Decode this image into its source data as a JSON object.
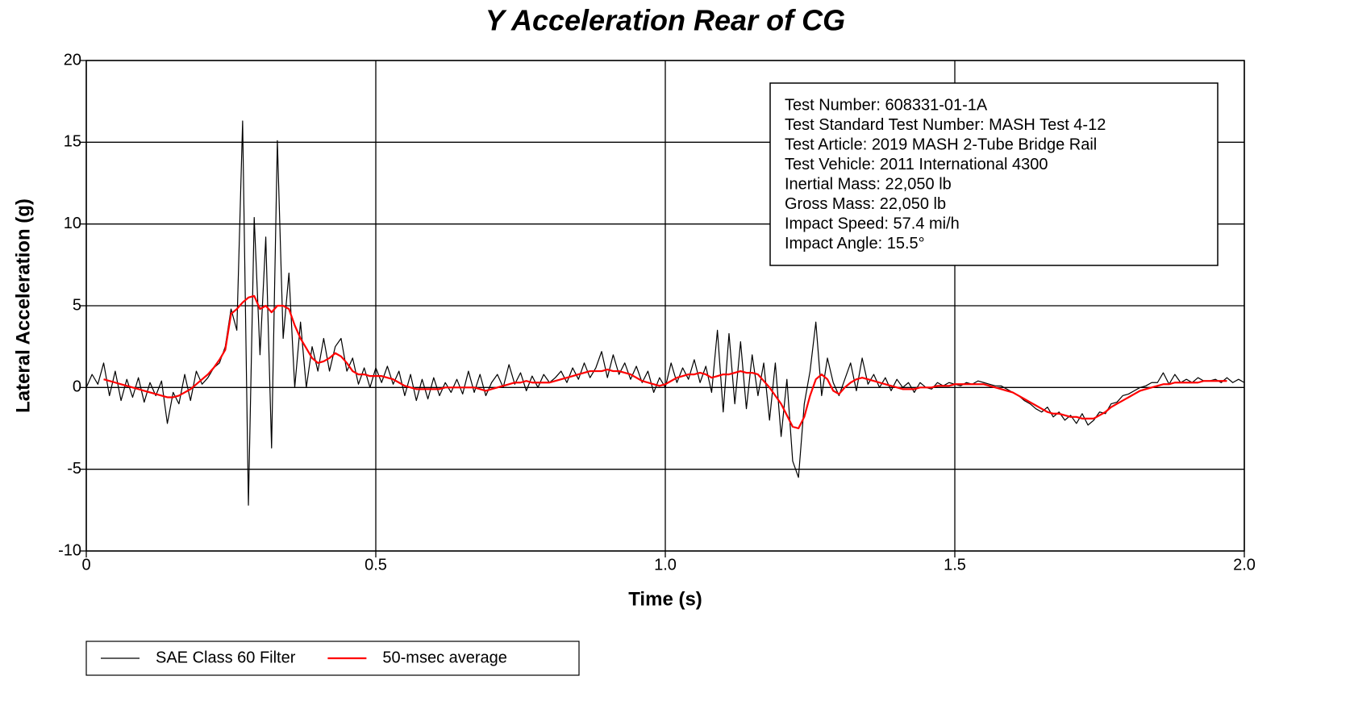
{
  "chart_data": {
    "type": "line",
    "title": "Y Acceleration Rear of CG",
    "xlabel": "Time (s)",
    "ylabel": "Lateral Acceleration (g)",
    "annotations": [
      "Test Number:  608331-01-1A",
      "Test Standard Test Number:  MASH Test 4-12",
      "Test Article:  2019 MASH 2-Tube Bridge Rail",
      "Test Vehicle:  2011 International 4300",
      "Inertial Mass:  22,050 lb",
      "Gross Mass:  22,050 lb",
      "Impact Speed:  57.4 mi/h",
      "Impact Angle:  15.5°"
    ],
    "xlim": [
      0,
      2
    ],
    "ylim": [
      -10,
      20
    ],
    "xticks": [
      0,
      0.5,
      {
        "value": 1,
        "label": "1.0"
      },
      1.5,
      {
        "value": 2,
        "label": "2.0"
      }
    ],
    "yticks": [
      -10,
      -5,
      0,
      5,
      10,
      15,
      20
    ],
    "grid": true,
    "legend": "bottom-left",
    "x": [
      0,
      0.01,
      0.02,
      0.03,
      0.04,
      0.05,
      0.06,
      0.07,
      0.08,
      0.09,
      0.1,
      0.11,
      0.12,
      0.13,
      0.14,
      0.15,
      0.16,
      0.17,
      0.18,
      0.19,
      0.2,
      0.21,
      0.22,
      0.23,
      0.24,
      0.25,
      0.26,
      0.27,
      0.28,
      0.29,
      0.3,
      0.31,
      0.32,
      0.33,
      0.34,
      0.35,
      0.36,
      0.37,
      0.38,
      0.39,
      0.4,
      0.41,
      0.42,
      0.43,
      0.44,
      0.45,
      0.46,
      0.47,
      0.48,
      0.49,
      0.5,
      0.51,
      0.52,
      0.53,
      0.54,
      0.55,
      0.56,
      0.57,
      0.58,
      0.59,
      0.6,
      0.61,
      0.62,
      0.63,
      0.64,
      0.65,
      0.66,
      0.67,
      0.68,
      0.69,
      0.7,
      0.71,
      0.72,
      0.73,
      0.74,
      0.75,
      0.76,
      0.77,
      0.78,
      0.79,
      0.8,
      0.81,
      0.82,
      0.83,
      0.84,
      0.85,
      0.86,
      0.87,
      0.88,
      0.89,
      0.9,
      0.91,
      0.92,
      0.93,
      0.94,
      0.95,
      0.96,
      0.97,
      0.98,
      0.99,
      1,
      1.01,
      1.02,
      1.03,
      1.04,
      1.05,
      1.06,
      1.07,
      1.08,
      1.09,
      1.1,
      1.11,
      1.12,
      1.13,
      1.14,
      1.15,
      1.16,
      1.17,
      1.18,
      1.19,
      1.2,
      1.21,
      1.22,
      1.23,
      1.24,
      1.25,
      1.26,
      1.27,
      1.28,
      1.29,
      1.3,
      1.31,
      1.32,
      1.33,
      1.34,
      1.35,
      1.36,
      1.37,
      1.38,
      1.39,
      1.4,
      1.41,
      1.42,
      1.43,
      1.44,
      1.45,
      1.46,
      1.47,
      1.48,
      1.49,
      1.5,
      1.51,
      1.52,
      1.53,
      1.54,
      1.55,
      1.56,
      1.57,
      1.58,
      1.59,
      1.6,
      1.61,
      1.62,
      1.63,
      1.64,
      1.65,
      1.66,
      1.67,
      1.68,
      1.69,
      1.7,
      1.71,
      1.72,
      1.73,
      1.74,
      1.75,
      1.76,
      1.77,
      1.78,
      1.79,
      1.8,
      1.81,
      1.82,
      1.83,
      1.84,
      1.85,
      1.86,
      1.87,
      1.88,
      1.89,
      1.9,
      1.91,
      1.92,
      1.93,
      1.94,
      1.95,
      1.96,
      1.97,
      1.98,
      1.99,
      2
    ],
    "series": [
      {
        "name": "SAE Class 60 Filter",
        "color": "#000000",
        "values": [
          0,
          0.8,
          0.2,
          1.5,
          -0.5,
          1.0,
          -0.8,
          0.5,
          -0.6,
          0.6,
          -0.9,
          0.3,
          -0.5,
          0.4,
          -2.2,
          -0.3,
          -1.0,
          0.8,
          -0.8,
          1.0,
          0.2,
          0.6,
          1.2,
          1.5,
          2.5,
          4.8,
          3.5,
          16.3,
          -7.2,
          10.4,
          2.0,
          9.2,
          -3.7,
          15.1,
          3.0,
          7.0,
          0.0,
          4.0,
          0.0,
          2.5,
          1.0,
          3.0,
          1.0,
          2.5,
          3.0,
          1.0,
          1.8,
          0.2,
          1.2,
          0.0,
          1.2,
          0.3,
          1.3,
          0.2,
          1.0,
          -0.5,
          0.8,
          -0.8,
          0.5,
          -0.7,
          0.6,
          -0.5,
          0.3,
          -0.3,
          0.5,
          -0.4,
          1.0,
          -0.3,
          0.8,
          -0.5,
          0.3,
          0.8,
          0.0,
          1.4,
          0.2,
          0.9,
          -0.2,
          0.7,
          0.0,
          0.8,
          0.3,
          0.6,
          1.0,
          0.3,
          1.2,
          0.5,
          1.5,
          0.6,
          1.2,
          2.2,
          0.6,
          2.0,
          0.8,
          1.5,
          0.5,
          1.3,
          0.3,
          1.0,
          -0.3,
          0.6,
          0.0,
          1.5,
          0.3,
          1.2,
          0.5,
          1.7,
          0.3,
          1.3,
          -0.3,
          3.5,
          -1.5,
          3.3,
          -1.0,
          2.8,
          -1.3,
          2.0,
          -0.5,
          1.5,
          -2.0,
          1.5,
          -3.0,
          0.5,
          -4.5,
          -5.5,
          -1.0,
          1.0,
          4.0,
          -0.5,
          1.8,
          0.3,
          -0.5,
          0.5,
          1.5,
          -0.2,
          1.8,
          0.2,
          0.8,
          0.0,
          0.6,
          -0.2,
          0.5,
          0.0,
          0.3,
          -0.3,
          0.3,
          0.0,
          -0.1,
          0.3,
          0.1,
          0.3,
          0.2,
          0.1,
          0.3,
          0.2,
          0.4,
          0.3,
          0.2,
          0.1,
          0.1,
          -0.1,
          -0.3,
          -0.5,
          -0.8,
          -1.0,
          -1.3,
          -1.5,
          -1.2,
          -1.8,
          -1.5,
          -2.0,
          -1.7,
          -2.2,
          -1.6,
          -2.3,
          -2.0,
          -1.5,
          -1.6,
          -1.0,
          -0.9,
          -0.5,
          -0.4,
          -0.2,
          0.0,
          0.1,
          0.3,
          0.3,
          0.9,
          0.2,
          0.8,
          0.3,
          0.5,
          0.3,
          0.6,
          0.4,
          0.4,
          0.5,
          0.3,
          0.6,
          0.3,
          0.5,
          0.3
        ]
      },
      {
        "name": "50-msec average",
        "color": "#ff0000",
        "values": [
          null,
          null,
          null,
          0.5,
          0.4,
          0.3,
          0.2,
          0.1,
          0.0,
          -0.1,
          -0.2,
          -0.3,
          -0.4,
          -0.5,
          -0.6,
          -0.6,
          -0.5,
          -0.3,
          -0.1,
          0.2,
          0.5,
          0.8,
          1.2,
          1.7,
          2.3,
          4.5,
          4.8,
          5.2,
          5.5,
          5.6,
          4.8,
          5.0,
          4.6,
          5.0,
          5.0,
          4.8,
          3.8,
          3.0,
          2.4,
          1.8,
          1.5,
          1.6,
          1.8,
          2.1,
          1.9,
          1.5,
          1.0,
          0.8,
          0.8,
          0.7,
          0.7,
          0.7,
          0.6,
          0.5,
          0.3,
          0.1,
          0.0,
          -0.1,
          -0.1,
          -0.1,
          -0.1,
          -0.1,
          0,
          0,
          0,
          0,
          0,
          0,
          -0.1,
          -0.2,
          -0.1,
          0,
          0.1,
          0.2,
          0.3,
          0.3,
          0.4,
          0.3,
          0.3,
          0.3,
          0.3,
          0.4,
          0.5,
          0.6,
          0.7,
          0.8,
          0.9,
          1.0,
          1.0,
          1.0,
          1.1,
          1.0,
          1.0,
          0.9,
          0.8,
          0.6,
          0.4,
          0.3,
          0.2,
          0.1,
          0.2,
          0.4,
          0.6,
          0.7,
          0.8,
          0.8,
          0.9,
          0.8,
          0.6,
          0.7,
          0.8,
          0.8,
          0.9,
          1.0,
          0.9,
          0.9,
          0.8,
          0.4,
          0.0,
          -0.5,
          -1.0,
          -1.7,
          -2.4,
          -2.5,
          -1.8,
          -0.5,
          0.5,
          0.8,
          0.5,
          -0.2,
          -0.4,
          0,
          0.3,
          0.5,
          0.6,
          0.5,
          0.4,
          0.3,
          0.2,
          0.1,
          0,
          -0.1,
          -0.1,
          -0.1,
          0,
          0,
          0,
          0.1,
          0.1,
          0.1,
          0.2,
          0.2,
          0.2,
          0.2,
          0.2,
          0.2,
          0.1,
          0,
          -0.1,
          -0.2,
          -0.3,
          -0.5,
          -0.7,
          -0.9,
          -1.1,
          -1.3,
          -1.5,
          -1.6,
          -1.6,
          -1.7,
          -1.8,
          -1.8,
          -1.9,
          -1.9,
          -1.9,
          -1.7,
          -1.5,
          -1.2,
          -1.0,
          -0.8,
          -0.6,
          -0.4,
          -0.2,
          -0.1,
          0,
          0.1,
          0.2,
          0.2,
          0.3,
          0.3,
          0.3,
          0.3,
          0.3,
          0.4,
          0.4,
          0.4,
          0.4,
          0.4,
          null,
          null,
          null
        ]
      }
    ]
  }
}
